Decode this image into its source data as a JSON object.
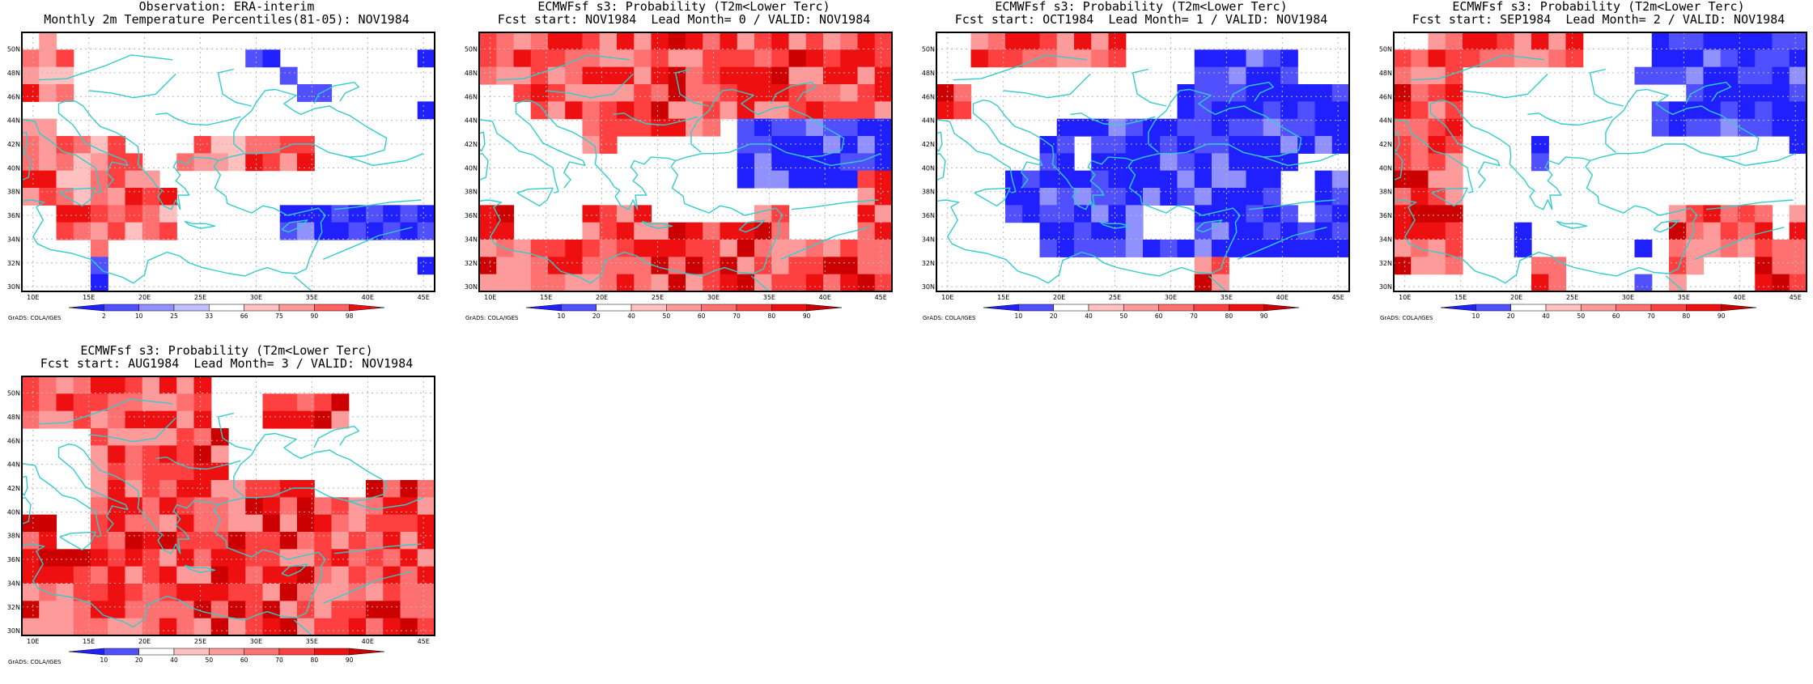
{
  "legend_colors": {
    "white": "#ffffff",
    "blue": [
      "#2020ff",
      "#5050ff",
      "#9090ff",
      "#c0c0ff"
    ],
    "red": [
      "#ffc0c0",
      "#ff9a9a",
      "#ff7070",
      "#ff4040",
      "#ee1010",
      "#cc0000"
    ],
    "coastline": "#33cccc"
  },
  "colorbars": {
    "percentile": {
      "labels": [
        "2",
        "10",
        "25",
        "33",
        "66",
        "75",
        "90",
        "98"
      ],
      "colors": [
        "#2020ff",
        "#5050ff",
        "#9090ff",
        "#c0c0ff",
        "#ffffff",
        "#ffc0c0",
        "#ff9a9a",
        "#ff6060",
        "#ee1010"
      ]
    },
    "probability": {
      "labels": [
        "10",
        "20",
        "40",
        "50",
        "60",
        "70",
        "80",
        "90"
      ],
      "colors": [
        "#2020ff",
        "#5050ff",
        "#ffffff",
        "#ffc0c0",
        "#ff9a9a",
        "#ff7070",
        "#ff4040",
        "#ee1010",
        "#cc0000"
      ]
    }
  },
  "grads_credit": "GrADS: COLA/IGES",
  "axes": {
    "lon_labels": [
      "10E",
      "15E",
      "20E",
      "25E",
      "30E",
      "35E",
      "40E",
      "45E"
    ],
    "lat_labels": [
      "30N",
      "32N",
      "34N",
      "36N",
      "38N",
      "40N",
      "42N",
      "44N",
      "46N",
      "48N",
      "50N"
    ]
  },
  "panels": [
    {
      "title_line1": "Observation: ERA-interim",
      "title_line2": "Monthly 2m Temperature Percentiles(81-05): NOV1984",
      "colorbar": "percentile",
      "grid_rows": [
        "WRWWWWWWWWWWWWWWWWWWWWWW",
        "RRRWWWWWWWWWWBBWWWWWWWWB",
        "RRRWWWWWWWWWWWWBWWWWWWWW",
        "RRRWWWWWWWWWWWWWBBWWWWWW",
        "WWWWWWWWWWWWWWWWWWWWWWWB",
        "RRWWWWWWWWWWWWWWWWWWWWWW",
        "RRRRRRWWWWRRRRRRRWWWWWWW",
        "RRRRRRRWWRRRRRRRRWWWWWWW",
        "RRRRRRRRWWWWWWWWWWWWWWWW",
        "RRRRRRRRRWWWWWWWWWWWWWWW",
        "WWRRRRRRRWWWWWWBBBBBBBBB",
        "WWRRRRRRRWWWWWWBBBBBBBBB",
        "WWWWRWWWWWWWWWWWWWWWWWWW",
        "WWWWBWWWWWWWWWWWWWWWWWWB",
        "WWWWBWWWWWWWWWWWWWWWWWWW"
      ]
    },
    {
      "title_line1": "ECMWFsf s3: Probability (T2m<Lower Terc)",
      "title_line2": "Fcst start: NOV1984  Lead Month= 0 / VALID: NOV1984",
      "colorbar": "probability",
      "grid_rows": [
        "RRRRRRRRRRRRRRRRRRRRRRRR",
        "RRRRRRRRRRRRRRRRRRRRRRRR",
        "RRRRRRRRRRRRRRRRRRRRRRRR",
        "WWRRRRRRRRRRRRRRRRRRRRRR",
        "WWWRRRRRRRRRRRRRRRRRRRRR",
        "WWWWWWRRRRRRRRWBBBBBBBBB",
        "WWWWWWRRWWWWWWWBBBBBBBBB",
        "WWWWWWWWWWWWWWWBBBBBBBBB",
        "WWWWWWWWWWWWWWWBBBBBBBRR",
        "WWWWWWWWWWWWWWWWWWWWWWRR",
        "RRWWWWRRRRWWWWWWRRWWWWRR",
        "RRWWWWRRRRRRRRRRRRWWWWRR",
        "RRRRRRRRRRRRRRRRRRRRRRRR",
        "RRRRRRRRRRRRRRRRRRRRRRRR",
        "RRRRRRRRRRRRRRRRRRRRRRRR"
      ]
    },
    {
      "title_line1": "ECMWFsf s3: Probability (T2m<Lower Terc)",
      "title_line2": "Fcst start: OCT1984  Lead Month= 1 / VALID: NOV1984",
      "colorbar": "probability",
      "grid_rows": [
        "WWRRRRRRRRRWWWWWWWWWWWWW",
        "WWRRRRRRRRRWWWWBBBBBBWWW",
        "WWWWWWWWWWWWWWWBBBBBBWWW",
        "RRWWWWWWWWWWWWBBBBBBBBBB",
        "RRWWWWWWWWWWWWBBBBBBBBBB",
        "WWWWWWWBBBBBBBBBBBBBBBBB",
        "WWWWWWBBWBBBBBBBBBBBBBBB",
        "WWWWWWBBWBBBBBBBBBBBBWWW",
        "WWWWBBBBBBBBBBBBBBBBWWBB",
        "WWWWBBBBBBBBBBBBBBBBWWBB",
        "WWWWBBBBBBBBWWWBBBBBBWBB",
        "WWWWWWBBBBBBWWWBBBBBBBBB",
        "WWWWWWBBBBBBBBBBBBBBBBBB",
        "WWWWWWWWWWWWWWWRRWWWWWWW",
        "WWWWWWWWWWWWWWWRRWWWWWWW"
      ]
    },
    {
      "title_line1": "ECMWFsf s3: Probability (T2m<Lower Terc)",
      "title_line2": "Fcst start: SEP1984  Lead Month= 2 / VALID: NOV1984",
      "colorbar": "probability",
      "grid_rows": [
        "WWRRRRRRRRRWWWWBBBBBBBBB",
        "RRRRRRRRRRRWWWWBBBBBBBBB",
        "RRRRWWWWWWWWWWBBBBBBBBBB",
        "RRRRWWWWWWWWWWWWWBBBBBBB",
        "RRRRWWWWWWWWWWWBBBBBBBBB",
        "RRRRWWWWWWWWWWWBBBBBBBBB",
        "RRRRWWWWBWWWWWWWWWWWWWWB",
        "RRRRWWWWBWWWWWWWWWWWWWWW",
        "RRRRWWWWWWWWWWWWWWWWWWWW",
        "RRRRWWWWWWWWWWWWWWWWWWWW",
        "RRRRWWWWWWWWWWWWRRRRRRWR",
        "RRRRWWWBWWWWWWWWRRRRRRWR",
        "RRRRWWWBWWWWWWBWRRRRRRRR",
        "RRRRWWWWRRWWWWWWRRWWWRRR",
        "WWWWWWWWRRWWWWBWRWWWWRRR"
      ]
    },
    {
      "title_line1": "ECMWFsf s3: Probability (T2m<Lower Terc)",
      "title_line2": "Fcst start: AUG1984  Lead Month= 3 / VALID: NOV1984",
      "colorbar": "probability",
      "grid_rows": [
        "RRRRRRRRRRRWWWWWWWWWWWWW",
        "RRRRRRRRRRRWWWRRRRRWWWWW",
        "RRRRRRRRRRRWWWRRRRRWWWWW",
        "WWWWRRRRRRRRWWWWWWWWWWWW",
        "WWWWRRRRRRRRWWWWWWWWWWWW",
        "WWWWRRRRRRRRWWWWWWWWWWWW",
        "WWWWRRRRRRRRRRRRRWWWRRRR",
        "WWWWRRRRRRRRRRRRRRRRRRRR",
        "RRWWRRRRRRRRRRRRRRRRRRRR",
        "RRWWRRRRRRRRRRRRRRRRRRRR",
        "RRRRRRRRRRRRRRRRRRRRRRRR",
        "RRRRRRRRRRRRRRRRRRRRRRRR",
        "RRRRRRRRRRRRRRRRRRRRRRRR",
        "RRRRRRRRRRRRRRRRRRRRRRRR",
        "RRRRRRRRRRRRRRRRRRRRRRRR"
      ]
    }
  ]
}
